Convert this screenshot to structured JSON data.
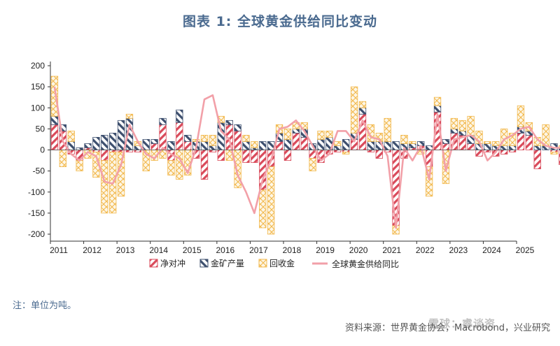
{
  "title": "图表 1:  全球黄金供给同比变动",
  "note": "注：单位为吨。",
  "source": "资料来源：世界黄金协会，Macrobond，兴业研究",
  "watermark": "雪球：睿谈资",
  "colors": {
    "net_hedging": "#d94a5a",
    "mine_production": "#3d4f6e",
    "recycling": "#f2b84c",
    "total_line": "#f2a0a8"
  },
  "chart_data": {
    "type": "bar",
    "title": "全球黄金供给同比变动",
    "ylabel": "吨",
    "ylim": [
      -200,
      200
    ],
    "yticks": [
      200,
      150,
      100,
      50,
      0,
      -50,
      -100,
      -150,
      -200
    ],
    "year_labels": [
      "2011",
      "2012",
      "2013",
      "2014",
      "2015",
      "2016",
      "2017",
      "2018",
      "2019",
      "2020",
      "2021",
      "2022",
      "2023",
      "2024",
      "2025"
    ],
    "quarters_per_year": 4,
    "series": [
      {
        "name": "净对冲",
        "key": "net_hedging",
        "values": [
          60,
          45,
          -10,
          -25,
          5,
          -5,
          -25,
          -5,
          -5,
          -5,
          -5,
          0,
          15,
          60,
          -25,
          65,
          20,
          -20,
          -70,
          -5,
          -25,
          60,
          45,
          -30,
          -30,
          -95,
          -40,
          20,
          -25,
          40,
          30,
          -20,
          -30,
          -10,
          -5,
          -5,
          25,
          85,
          -5,
          -20,
          -5,
          -180,
          -20,
          5,
          10,
          -40,
          90,
          15,
          40,
          35,
          15,
          -15,
          -5,
          -15,
          -10,
          -5,
          40,
          35,
          -45,
          0,
          -5,
          -35,
          -35,
          0
        ]
      },
      {
        "name": "金矿产量",
        "key": "mine_production",
        "values": [
          20,
          15,
          20,
          5,
          10,
          30,
          35,
          40,
          70,
          75,
          10,
          25,
          10,
          15,
          20,
          30,
          15,
          20,
          20,
          10,
          65,
          10,
          15,
          20,
          5,
          20,
          20,
          20,
          25,
          10,
          20,
          15,
          25,
          30,
          10,
          25,
          15,
          15,
          20,
          20,
          20,
          20,
          15,
          10,
          10,
          10,
          15,
          10,
          10,
          10,
          20,
          15,
          15,
          10,
          10,
          10,
          15,
          10,
          10,
          10,
          15,
          5,
          5,
          5
        ]
      },
      {
        "name": "回收金",
        "key": "recycling",
        "values": [
          95,
          -40,
          25,
          -25,
          -20,
          -60,
          -125,
          -145,
          -105,
          10,
          10,
          -50,
          -25,
          -20,
          -35,
          -70,
          -60,
          5,
          15,
          25,
          15,
          -25,
          -90,
          15,
          15,
          -90,
          -160,
          20,
          25,
          15,
          15,
          -30,
          20,
          15,
          10,
          -5,
          110,
          15,
          40,
          20,
          55,
          -20,
          20,
          5,
          -10,
          -70,
          20,
          -80,
          25,
          25,
          45,
          30,
          5,
          10,
          40,
          30,
          50,
          20,
          20,
          50,
          -5,
          5,
          40,
          45
        ]
      },
      {
        "name": "全球黄金供给同比",
        "key": "total_line",
        "type": "line",
        "values": [
          150,
          20,
          -10,
          -25,
          -5,
          -15,
          -75,
          -80,
          -35,
          60,
          20,
          -10,
          -20,
          5,
          -10,
          -20,
          -55,
          5,
          120,
          130,
          45,
          25,
          -60,
          -100,
          -150,
          -70,
          -25,
          50,
          55,
          70,
          45,
          10,
          -25,
          -10,
          45,
          45,
          20,
          70,
          30,
          25,
          -15,
          -185,
          5,
          -25,
          10,
          -70,
          85,
          -50,
          25,
          30,
          35,
          20,
          -25,
          -5,
          25,
          35,
          50,
          55,
          25,
          10,
          5,
          5,
          -5,
          20
        ]
      }
    ]
  }
}
